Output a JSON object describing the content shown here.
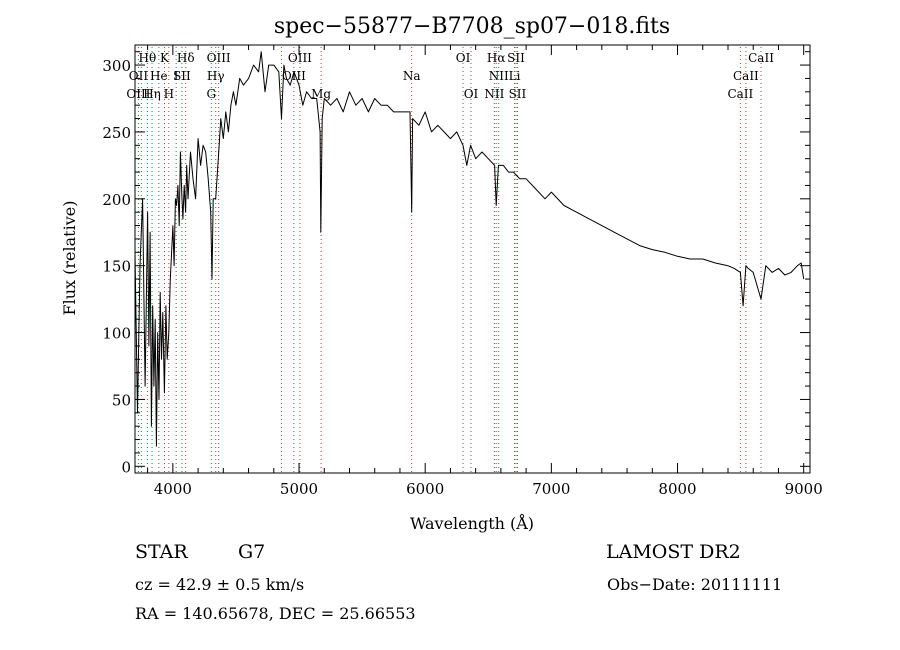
{
  "chart_data": {
    "type": "line",
    "title": "spec−55877−B7708_sp07−018.fits",
    "xlabel": "Wavelength (Å)",
    "ylabel": "Flux (relative)",
    "xlim": [
      3700,
      9050
    ],
    "ylim": [
      -5,
      315
    ],
    "xticks": [
      4000,
      5000,
      6000,
      7000,
      8000,
      9000
    ],
    "yticks": [
      0,
      50,
      100,
      150,
      200,
      250,
      300
    ],
    "grid": false,
    "line_color": "#000000",
    "marker_color": "#cc3333",
    "series": [
      {
        "name": "flux",
        "x": [
          3700,
          3720,
          3740,
          3760,
          3780,
          3800,
          3810,
          3820,
          3830,
          3840,
          3850,
          3860,
          3870,
          3880,
          3890,
          3900,
          3910,
          3920,
          3933,
          3945,
          3955,
          3968,
          3980,
          3990,
          4000,
          4010,
          4020,
          4030,
          4040,
          4050,
          4060,
          4070,
          4080,
          4090,
          4101,
          4110,
          4120,
          4140,
          4160,
          4180,
          4200,
          4220,
          4240,
          4260,
          4280,
          4300,
          4310,
          4320,
          4340,
          4360,
          4380,
          4400,
          4420,
          4440,
          4460,
          4480,
          4500,
          4530,
          4560,
          4600,
          4640,
          4680,
          4700,
          4730,
          4760,
          4800,
          4840,
          4861,
          4880,
          4900,
          4930,
          4960,
          5000,
          5030,
          5060,
          5100,
          5140,
          5167,
          5173,
          5184,
          5200,
          5250,
          5300,
          5350,
          5400,
          5450,
          5500,
          5550,
          5600,
          5650,
          5700,
          5750,
          5800,
          5850,
          5880,
          5893,
          5900,
          5950,
          6000,
          6050,
          6100,
          6150,
          6200,
          6250,
          6300,
          6330,
          6360,
          6400,
          6450,
          6500,
          6550,
          6563,
          6580,
          6620,
          6660,
          6700,
          6750,
          6800,
          6850,
          6900,
          6950,
          7000,
          7100,
          7200,
          7300,
          7400,
          7500,
          7600,
          7700,
          7800,
          7900,
          8000,
          8100,
          8200,
          8300,
          8400,
          8450,
          8498,
          8520,
          8542,
          8560,
          8600,
          8662,
          8700,
          8750,
          8800,
          8850,
          8900,
          8950,
          8980,
          9000
        ],
        "y": [
          160,
          40,
          150,
          200,
          60,
          190,
          90,
          175,
          30,
          120,
          60,
          110,
          15,
          100,
          50,
          130,
          80,
          115,
          55,
          120,
          80,
          100,
          140,
          160,
          180,
          150,
          200,
          195,
          210,
          180,
          235,
          205,
          185,
          210,
          190,
          225,
          200,
          235,
          215,
          200,
          245,
          225,
          240,
          235,
          215,
          190,
          140,
          200,
          200,
          230,
          260,
          245,
          265,
          250,
          270,
          280,
          270,
          290,
          285,
          290,
          300,
          295,
          310,
          280,
          300,
          300,
          295,
          260,
          300,
          290,
          285,
          295,
          285,
          270,
          280,
          275,
          275,
          250,
          175,
          260,
          275,
          270,
          275,
          265,
          280,
          270,
          275,
          265,
          275,
          270,
          270,
          265,
          265,
          265,
          265,
          190,
          260,
          255,
          265,
          250,
          255,
          250,
          245,
          250,
          240,
          225,
          240,
          230,
          235,
          230,
          225,
          195,
          225,
          225,
          220,
          220,
          215,
          215,
          210,
          205,
          200,
          205,
          195,
          190,
          185,
          180,
          175,
          170,
          165,
          162,
          160,
          157,
          155,
          155,
          152,
          150,
          148,
          145,
          120,
          150,
          148,
          145,
          125,
          150,
          145,
          148,
          143,
          145,
          150,
          152,
          140
        ],
        "values_note": "flux in relative units"
      }
    ],
    "annotations": [
      {
        "label": "Hθ",
        "x": 3798,
        "row": 1
      },
      {
        "label": "K",
        "x": 3934,
        "row": 1
      },
      {
        "label": "Hδ",
        "x": 4102,
        "row": 1
      },
      {
        "label": "OIII",
        "x": 4363,
        "row": 1
      },
      {
        "label": "OIII",
        "x": 5007,
        "row": 1
      },
      {
        "label": "Na",
        "x": 5893,
        "row": 2
      },
      {
        "label": "OI",
        "x": 6300,
        "row": 1
      },
      {
        "label": "Hα",
        "x": 6563,
        "row": 1
      },
      {
        "label": "SII",
        "x": 6720,
        "row": 1
      },
      {
        "label": "CaII",
        "x": 8662,
        "row": 1
      },
      {
        "label": "OII",
        "x": 3727,
        "row": 2
      },
      {
        "label": "He",
        "x": 3889,
        "row": 2
      },
      {
        "label": "I",
        "x": 4026,
        "row": 2
      },
      {
        "label": "SII",
        "x": 4072,
        "row": 2
      },
      {
        "label": "Hγ",
        "x": 4340,
        "row": 2
      },
      {
        "label": "OIII",
        "x": 4959,
        "row": 2
      },
      {
        "label": "NII",
        "x": 6583,
        "row": 2
      },
      {
        "label": "Li",
        "x": 6708,
        "row": 2
      },
      {
        "label": "CaII",
        "x": 8542,
        "row": 2
      },
      {
        "label": "OIII",
        "x": 3727,
        "row": 3
      },
      {
        "label": "Hη",
        "x": 3835,
        "row": 3
      },
      {
        "label": "H",
        "x": 3968,
        "row": 3
      },
      {
        "label": "G",
        "x": 4305,
        "row": 3
      },
      {
        "label": "Mg",
        "x": 5175,
        "row": 3
      },
      {
        "label": "OI",
        "x": 6363,
        "row": 3
      },
      {
        "label": "NII",
        "x": 6548,
        "row": 3
      },
      {
        "label": "SII",
        "x": 6731,
        "row": 3
      },
      {
        "label": "CaII",
        "x": 8498,
        "row": 3
      }
    ],
    "line_markers": [
      3727,
      3750,
      3798,
      3835,
      3889,
      3934,
      3968,
      4026,
      4072,
      4102,
      4305,
      4340,
      4363,
      4861,
      4959,
      5007,
      5175,
      5893,
      6300,
      6363,
      6548,
      6563,
      6583,
      6708,
      6720,
      6731,
      8498,
      8542,
      8662
    ]
  },
  "footer": {
    "object_class": "STAR",
    "subclass": "G7",
    "survey": "LAMOST DR2",
    "redshift": "cz = 42.9 ± 0.5 km/s",
    "obs_date": "Obs−Date: 20111111",
    "coords": "RA = 140.65678, DEC =  25.66553"
  }
}
